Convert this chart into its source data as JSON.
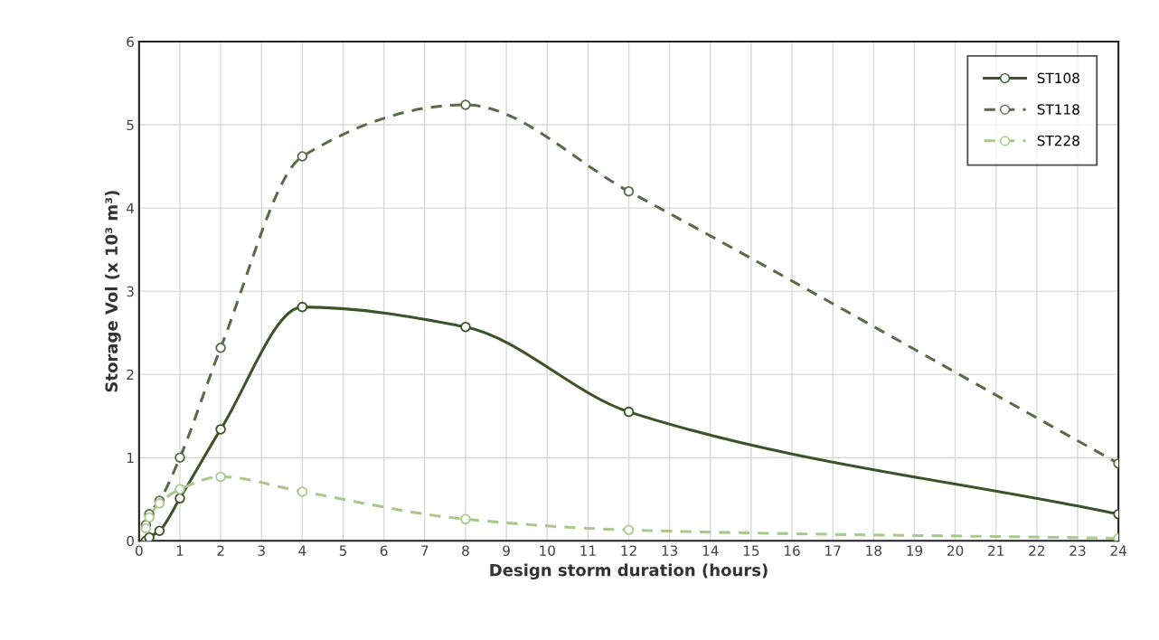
{
  "chart_data": {
    "type": "line",
    "xlabel": "Design storm duration (hours)",
    "ylabel": "Storage Vol (x 10³ m³)",
    "xlim": [
      0,
      24
    ],
    "xticks": [
      0,
      1,
      2,
      3,
      4,
      5,
      6,
      7,
      8,
      9,
      10,
      11,
      12,
      13,
      14,
      15,
      16,
      17,
      18,
      19,
      20,
      21,
      22,
      23,
      24
    ],
    "ylim": [
      0,
      6
    ],
    "yticks": [
      0,
      1,
      2,
      3,
      4,
      5,
      6
    ],
    "grid": true,
    "legend": "top right",
    "marker": "circle",
    "series": [
      {
        "name": "ST108",
        "color": "#3d5229",
        "line_style": "solid",
        "x": [
          0.167,
          0.25,
          0.5,
          1,
          2,
          4,
          8,
          12,
          24
        ],
        "values": [
          0,
          0.04,
          0.12,
          0.51,
          1.34,
          2.81,
          2.57,
          1.55,
          0.32
        ]
      },
      {
        "name": "ST118",
        "color": "#5a6b48",
        "line_style": "dashed",
        "x": [
          0.167,
          0.25,
          0.5,
          1,
          2,
          4,
          8,
          12,
          24
        ],
        "values": [
          0.19,
          0.32,
          0.48,
          1.0,
          2.32,
          4.62,
          5.24,
          4.2,
          0.93
        ]
      },
      {
        "name": "ST228",
        "color": "#a9c98a",
        "line_style": "dashed",
        "x": [
          0.167,
          0.25,
          0.5,
          1,
          2,
          4,
          8,
          12,
          24
        ],
        "values": [
          0.15,
          0.28,
          0.45,
          0.62,
          0.77,
          0.59,
          0.26,
          0.13,
          0.03
        ]
      }
    ]
  }
}
